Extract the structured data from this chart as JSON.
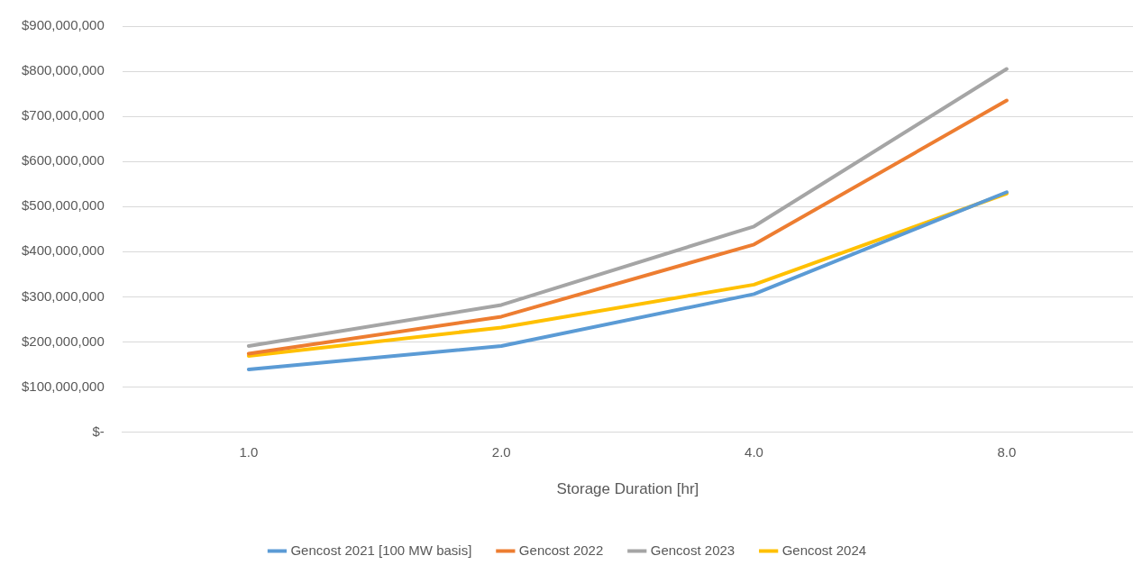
{
  "chart_data": {
    "type": "line",
    "xlabel": "Storage Duration [hr]",
    "categories": [
      "1.0",
      "2.0",
      "4.0",
      "8.0"
    ],
    "series": [
      {
        "name": "Gencost 2021 [100 MW basis]",
        "color": "#5b9bd5",
        "values": [
          139000000,
          191000000,
          306000000,
          532000000
        ]
      },
      {
        "name": "Gencost 2022",
        "color": "#ed7d31",
        "values": [
          174000000,
          256000000,
          416000000,
          735000000
        ]
      },
      {
        "name": "Gencost 2023",
        "color": "#a5a5a5",
        "values": [
          191000000,
          282000000,
          456000000,
          805000000
        ]
      },
      {
        "name": "Gencost 2024",
        "color": "#ffc000",
        "values": [
          169000000,
          232000000,
          327000000,
          529000000
        ]
      }
    ],
    "ylim": [
      0,
      900000000
    ],
    "yticks": [
      {
        "value": 0,
        "label": "$-"
      },
      {
        "value": 100000000,
        "label": "$100,000,000"
      },
      {
        "value": 200000000,
        "label": "$200,000,000"
      },
      {
        "value": 300000000,
        "label": "$300,000,000"
      },
      {
        "value": 400000000,
        "label": "$400,000,000"
      },
      {
        "value": 500000000,
        "label": "$500,000,000"
      },
      {
        "value": 600000000,
        "label": "$600,000,000"
      },
      {
        "value": 700000000,
        "label": "$700,000,000"
      },
      {
        "value": 800000000,
        "label": "$800,000,000"
      },
      {
        "value": 900000000,
        "label": "$900,000,000"
      }
    ],
    "grid": "y",
    "legend": "bottom",
    "marker": "none",
    "line_style": "solid"
  }
}
